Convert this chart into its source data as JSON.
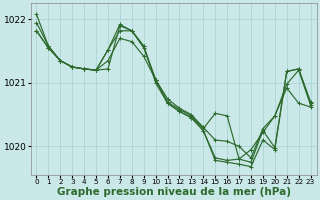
{
  "background_color": "#cbe8e8",
  "grid_color": "#aad4d4",
  "line_color": "#2d6a2d",
  "marker_color": "#2d6a2d",
  "xlabel": "Graphe pression niveau de la mer (hPa)",
  "xlabel_fontsize": 7.5,
  "ylim": [
    1019.55,
    1022.25
  ],
  "yticks": [
    1020,
    1021,
    1022
  ],
  "xlim": [
    -0.5,
    23.5
  ],
  "xticks": [
    0,
    1,
    2,
    3,
    4,
    5,
    6,
    7,
    8,
    9,
    10,
    11,
    12,
    13,
    14,
    15,
    16,
    17,
    18,
    19,
    20,
    21,
    22,
    23
  ],
  "series": [
    [
      1021.95,
      1021.58,
      1021.35,
      1021.25,
      1021.22,
      1021.2,
      1021.22,
      1021.9,
      1021.82,
      1021.58,
      1021.05,
      1020.68,
      1020.55,
      1020.45,
      1020.25,
      1019.78,
      1019.75,
      1019.72,
      1019.68,
      1020.1,
      1019.95,
      1021.18,
      1021.22,
      1020.68
    ],
    [
      1021.82,
      1021.55,
      1021.35,
      1021.25,
      1021.22,
      1021.2,
      1021.52,
      1021.92,
      1021.82,
      1021.55,
      1021.05,
      1020.7,
      1020.58,
      1020.48,
      1020.28,
      1020.52,
      1020.48,
      1019.8,
      1019.95,
      1020.22,
      1020.48,
      1020.98,
      1021.2,
      1020.65
    ],
    [
      1021.82,
      1021.55,
      1021.35,
      1021.25,
      1021.22,
      1021.2,
      1021.35,
      1021.7,
      1021.65,
      1021.42,
      1021.05,
      1020.75,
      1020.6,
      1020.5,
      1020.3,
      1020.1,
      1020.08,
      1020.0,
      1019.82,
      1020.28,
      1020.48,
      1020.92,
      1020.68,
      1020.62
    ],
    [
      1022.08,
      1021.58,
      1021.35,
      1021.25,
      1021.22,
      1021.2,
      1021.52,
      1021.82,
      1021.82,
      1021.58,
      1021.0,
      1020.68,
      1020.55,
      1020.45,
      1020.25,
      1019.82,
      1019.78,
      1019.8,
      1019.75,
      1020.25,
      1019.98,
      1021.18,
      1021.22,
      1020.7
    ]
  ]
}
